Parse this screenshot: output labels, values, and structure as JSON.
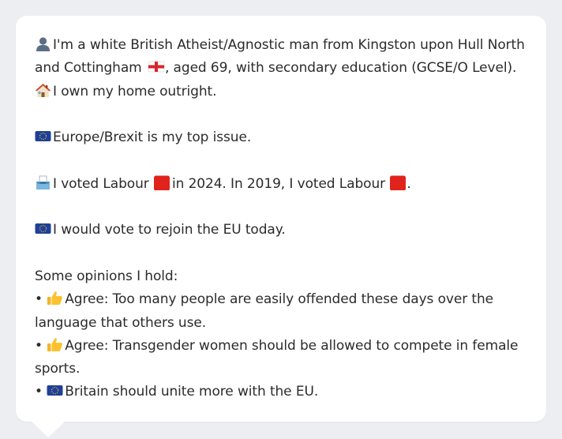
{
  "profile": {
    "intro_part1": "I'm a white British Atheist/Agnostic man from Kingston upon Hull North and Cottingham",
    "intro_part2": ", aged 69, with secondary education (GCSE/O Level).",
    "intro_part3": "I own my home outright.",
    "top_issue": "Europe/Brexit is my top issue.",
    "vote_part1": "I voted Labour",
    "vote_part2": "in 2024. In 2019, I voted Labour",
    "vote_part3": ".",
    "rejoin": "I would vote to rejoin the EU today.",
    "opinions_heading": "Some opinions I hold:",
    "opinions": [
      {
        "bullet": "•",
        "text": "Agree: Too many people are easily offended these days over the language that others use.",
        "icon": "thumbs-up-icon"
      },
      {
        "bullet": "•",
        "text": "Agree: Transgender women should be allowed to compete in female sports.",
        "icon": "thumbs-up-icon"
      },
      {
        "bullet": "•",
        "text": "Britain should unite more with the EU.",
        "icon": "eu-flag-icon"
      }
    ]
  },
  "icons": {
    "person": "person-icon",
    "england_flag": "england-flag-icon",
    "house": "house-icon",
    "eu_flag": "eu-flag-icon",
    "ballot_box": "ballot-box-icon",
    "labour_square": "red-square-icon",
    "thumbs_up": "thumbs-up-icon"
  },
  "colors": {
    "background": "#eceef2",
    "card": "#ffffff",
    "text": "#2b2b2b",
    "labour_red": "#e0241b",
    "eu_blue": "#1f3f99"
  }
}
